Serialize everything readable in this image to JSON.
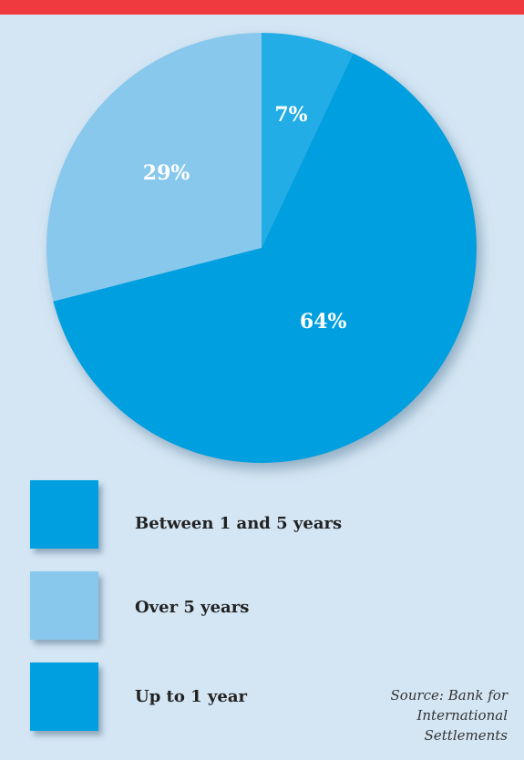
{
  "chart_data": {
    "type": "pie",
    "slices": [
      {
        "label": "Between 1 and 5 years",
        "value": 64,
        "display": "64%",
        "color": "#009fe0"
      },
      {
        "label": "Over 5 years",
        "value": 29,
        "display": "29%",
        "color": "#87c8ec"
      },
      {
        "label": "Up to 1 year",
        "value": 7,
        "display": "7%",
        "color": "#20ade6"
      }
    ]
  },
  "legend": [
    {
      "label": "Between 1 and 5 years",
      "color": "#009fe0"
    },
    {
      "label": "Over 5 years",
      "color": "#87c8ec"
    },
    {
      "label": "Up to 1 year",
      "color": "#009fe0"
    }
  ],
  "source_text": "Source: Bank for International Settlements",
  "colors": {
    "background": "#d4e6f4",
    "top_bar": "#ef3a3f"
  }
}
